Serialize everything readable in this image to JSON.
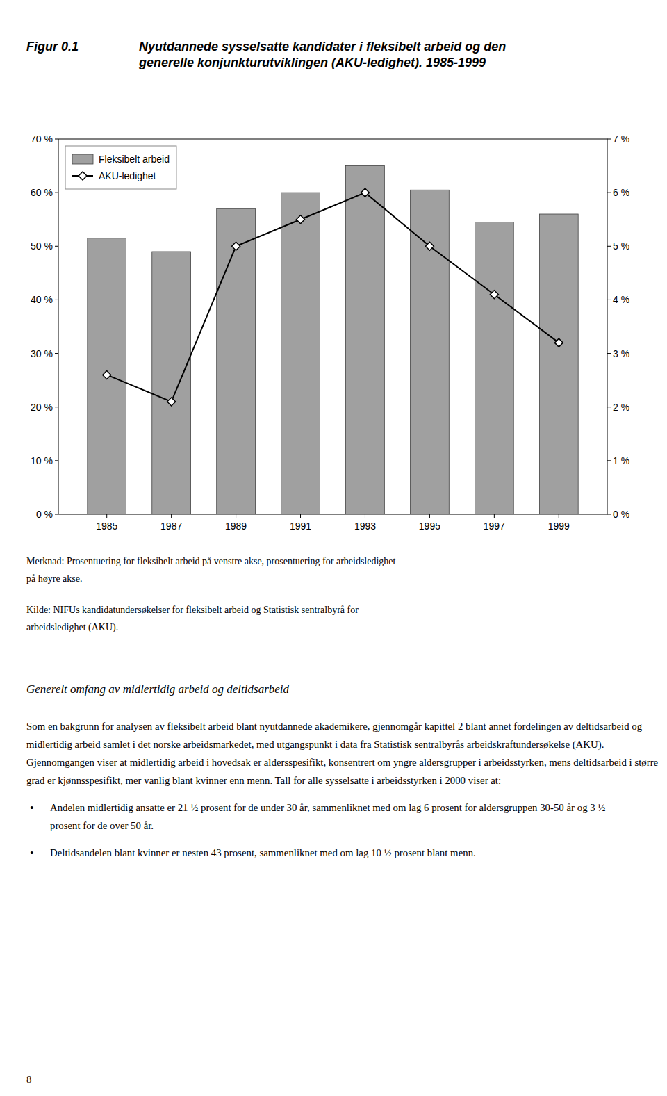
{
  "chart_data": {
    "type": "bar",
    "title": "Figur 0.1",
    "subtitle": "Nyutdannede sysselsatte kandidater i fleksibelt arbeid og den\ngenerelle konjunkturutviklingen (AKU-ledighet). 1985-1999",
    "x": [
      1985,
      1987,
      1989,
      1991,
      1993,
      1995,
      1997,
      1999
    ],
    "xlim": [
      1983.5,
      2000.5
    ],
    "xticks": [
      1985,
      1987,
      1989,
      1991,
      1993,
      1995,
      1997,
      1999
    ],
    "series": [
      {
        "name": "Fleksibelt arbeid",
        "type": "bar",
        "color": "#a0a0a0",
        "values": [
          51.5,
          49.0,
          57.0,
          60.0,
          65.0,
          60.5,
          54.5,
          56.0
        ]
      },
      {
        "name": "AKU-ledighet",
        "type": "line",
        "color": "#000000",
        "marker": "diamond",
        "axis": "y2",
        "values": [
          2.6,
          2.1,
          5.0,
          5.5,
          6.0,
          5.0,
          4.1,
          3.2
        ]
      }
    ],
    "ylim": [
      0,
      70
    ],
    "yticks": [
      {
        "value": 0,
        "label": "0 %"
      },
      {
        "value": 10,
        "label": "10 %"
      },
      {
        "value": 20,
        "label": "20 %"
      },
      {
        "value": 30,
        "label": "30 %"
      },
      {
        "value": 40,
        "label": "40 %"
      },
      {
        "value": 50,
        "label": "50 %"
      },
      {
        "value": 60,
        "label": "60 %"
      },
      {
        "value": 70,
        "label": "70 %"
      }
    ],
    "y2lim": [
      0,
      7
    ],
    "y2ticks": [
      {
        "value": 0,
        "label": "0 %"
      },
      {
        "value": 1,
        "label": "1 %"
      },
      {
        "value": 2,
        "label": "2 %"
      },
      {
        "value": 3,
        "label": "3 %"
      },
      {
        "value": 4,
        "label": "4 %"
      },
      {
        "value": 5,
        "label": "5 %"
      },
      {
        "value": 6,
        "label": "6 %"
      },
      {
        "value": 7,
        "label": "7 %"
      }
    ],
    "grid": false,
    "legend": "upper left"
  },
  "page_text": {
    "note": [
      "Merknad: Prosentuering for fleksibelt arbeid på venstre akse, prosentuering for arbeidsledighet",
      "på høyre akse."
    ],
    "source": [
      "Kilde: NIFUs kandidatundersøkelser for fleksibelt arbeid og Statistisk sentralbyrå for",
      "arbeidsledighet (AKU)."
    ],
    "section_title": "Generelt omfang av midlertidig arbeid og deltidsarbeid",
    "body": [
      "Som en bakgrunn for analysen av fleksibelt arbeid blant nyutdannede akademikere, gjennomgår kapittel 2 blant annet fordelingen av deltidsarbeid og",
      "midlertidig arbeid samlet i det norske arbeidsmarkedet, med utgangspunkt i data fra Statistisk sentralbyrås arbeidskraftundersøkelse (AKU).",
      "Gjennomgangen viser at midlertidig arbeid i hovedsak er aldersspesifikt, konsentrert om yngre aldersgrupper i arbeidsstyrken, mens deltidsarbeid i større",
      "grad er kjønnsspesifikt, mer vanlig blant kvinner enn menn. Tall for alle sysselsatte i arbeidsstyrken i 2000 viser at:"
    ],
    "bullet": "•",
    "bullets": [
      [
        "Andelen midlertidig ansatte er 21 ½ prosent for de under 30 år, sammenliknet med om lag 6 prosent for aldersgruppen 30-50 år og 3 ½",
        "prosent for de over 50 år."
      ],
      [
        "Deltidsandelen blant kvinner er nesten 43 prosent, sammenliknet med om lag 10 ½ prosent blant menn."
      ]
    ],
    "page_number": "8"
  }
}
